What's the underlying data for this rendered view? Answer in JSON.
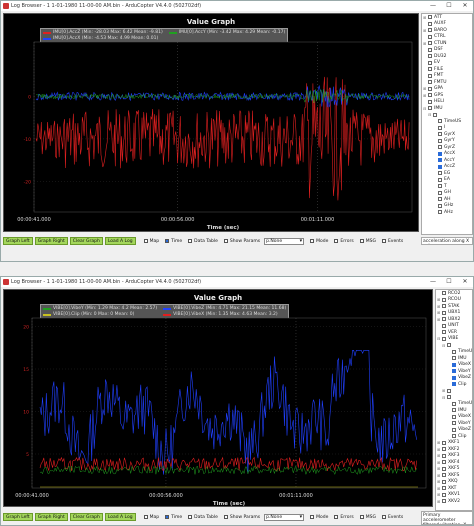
{
  "window1": {
    "title": "Log Browser - 1 1-01-1980 11-00-00 AM.bin - ArduCopter V4.4.0 (502702df)",
    "graph_title": "Value Graph",
    "legend": [
      {
        "label": "IMU[0].AccZ (Min: -28.03 Max: 6.42 Mean: -9.81)",
        "color": "#e02020"
      },
      {
        "label": "IMU[0].AccX (Min: -4.53 Max: 4.99 Mean: 0.01)",
        "color": "#2040ff"
      },
      {
        "label": "IMU[0].AccY (Min: -3.42 Max: 4.29 Mean: -0.17)",
        "color": "#20a020"
      }
    ],
    "x_ticks": [
      "00:00:41.000",
      "00:00:56.000",
      "00:01:11.000"
    ],
    "x_title": "Time (sec)",
    "y_ticks": [
      "0",
      "-10",
      "-20"
    ],
    "sidebar_items": [
      {
        "label": "ATT",
        "checked": false,
        "expander": "+",
        "indent": 0
      },
      {
        "label": "AUXF",
        "checked": false,
        "expander": "",
        "indent": 0
      },
      {
        "label": "BARO",
        "checked": false,
        "expander": "+",
        "indent": 0
      },
      {
        "label": "CTRL",
        "checked": false,
        "expander": "",
        "indent": 0
      },
      {
        "label": "CTUN",
        "checked": false,
        "expander": "+",
        "indent": 0
      },
      {
        "label": "DSF",
        "checked": false,
        "expander": "",
        "indent": 0
      },
      {
        "label": "DU32",
        "checked": false,
        "expander": "",
        "indent": 0
      },
      {
        "label": "EV",
        "checked": false,
        "expander": "",
        "indent": 0
      },
      {
        "label": "FILE",
        "checked": false,
        "expander": "",
        "indent": 0
      },
      {
        "label": "FMT",
        "checked": false,
        "expander": "",
        "indent": 0
      },
      {
        "label": "FMTU",
        "checked": false,
        "expander": "",
        "indent": 0
      },
      {
        "label": "GPA",
        "checked": false,
        "expander": "+",
        "indent": 0
      },
      {
        "label": "GPS",
        "checked": false,
        "expander": "+",
        "indent": 0
      },
      {
        "label": "HELI",
        "checked": false,
        "expander": "",
        "indent": 0
      },
      {
        "label": "IMU",
        "checked": false,
        "expander": "−",
        "indent": 0
      },
      {
        "label": "",
        "checked": false,
        "expander": "−",
        "indent": 1
      },
      {
        "label": "TimeUS",
        "checked": false,
        "expander": "",
        "indent": 2
      },
      {
        "label": "I",
        "checked": false,
        "expander": "",
        "indent": 2
      },
      {
        "label": "GyrX",
        "checked": false,
        "expander": "",
        "indent": 2
      },
      {
        "label": "GyrY",
        "checked": false,
        "expander": "",
        "indent": 2
      },
      {
        "label": "GyrZ",
        "checked": false,
        "expander": "",
        "indent": 2
      },
      {
        "label": "AccX",
        "checked": true,
        "expander": "",
        "indent": 2
      },
      {
        "label": "AccY",
        "checked": true,
        "expander": "",
        "indent": 2
      },
      {
        "label": "AccZ",
        "checked": true,
        "expander": "",
        "indent": 2
      },
      {
        "label": "EG",
        "checked": false,
        "expander": "",
        "indent": 2
      },
      {
        "label": "EA",
        "checked": false,
        "expander": "",
        "indent": 2
      },
      {
        "label": "T",
        "checked": false,
        "expander": "",
        "indent": 2
      },
      {
        "label": "GH",
        "checked": false,
        "expander": "",
        "indent": 2
      },
      {
        "label": "AH",
        "checked": false,
        "expander": "",
        "indent": 2
      },
      {
        "label": "GHz",
        "checked": false,
        "expander": "",
        "indent": 2
      },
      {
        "label": "AHz",
        "checked": false,
        "expander": "",
        "indent": 2
      }
    ],
    "description": "acceleration along X axis",
    "toolbar": {
      "buttons": [
        "Graph Left",
        "Graph Right",
        "Clear Graph",
        "Load A Log"
      ],
      "checks": [
        {
          "label": "Map",
          "checked": false
        },
        {
          "label": "Time",
          "checked": true
        },
        {
          "label": "Data Table",
          "checked": false
        },
        {
          "label": "Show Params",
          "checked": false
        }
      ],
      "select_value": "p.None",
      "checks2": [
        {
          "label": "Mode",
          "checked": false
        },
        {
          "label": "Errors",
          "checked": false
        },
        {
          "label": "MSG",
          "checked": false
        },
        {
          "label": "Events",
          "checked": false
        }
      ]
    }
  },
  "window2": {
    "title": "Log Browser - 1 1-01-1980 11-00-00 AM.bin - ArduCopter V4.4.0 (502702df)",
    "graph_title": "Value Graph",
    "legend": [
      {
        "label": "VIBE[0].VibeY (Min: 1.29 Max: 4.2 Mean: 2.57)",
        "color": "#20a020"
      },
      {
        "label": "VIBE[0].Clip (Min: 0 Max: 0 Mean: 0)",
        "color": "#c8c020"
      },
      {
        "label": "VIBE[0].VibeZ (Min: 4.71 Max: 21.15 Mean: 11.68)",
        "color": "#2040ff"
      },
      {
        "label": "VIBE[0].VibeX (Min: 1.35 Max: 4.63 Mean: 3.2)",
        "color": "#e02020"
      }
    ],
    "x_ticks": [
      "00:00:41.000",
      "00:00:56.000",
      "00:01:11.000"
    ],
    "x_title": "Time (sec)",
    "y_ticks": [
      "20",
      "15",
      "10",
      "5"
    ],
    "sidebar_items": [
      {
        "label": "RCO2",
        "checked": false,
        "expander": "",
        "indent": 0
      },
      {
        "label": "RCOU",
        "checked": false,
        "expander": "+",
        "indent": 0
      },
      {
        "label": "STAK",
        "checked": false,
        "expander": "+",
        "indent": 0
      },
      {
        "label": "UBX1",
        "checked": false,
        "expander": "+",
        "indent": 0
      },
      {
        "label": "UBX2",
        "checked": false,
        "expander": "+",
        "indent": 0
      },
      {
        "label": "UNIT",
        "checked": false,
        "expander": "",
        "indent": 0
      },
      {
        "label": "VER",
        "checked": false,
        "expander": "",
        "indent": 0
      },
      {
        "label": "VIBE",
        "checked": false,
        "expander": "−",
        "indent": 0
      },
      {
        "label": "",
        "checked": false,
        "expander": "−",
        "indent": 1
      },
      {
        "label": "TimeUS",
        "checked": false,
        "expander": "",
        "indent": 2
      },
      {
        "label": "IMU",
        "checked": false,
        "expander": "",
        "indent": 2
      },
      {
        "label": "VibeX",
        "checked": true,
        "expander": "",
        "indent": 2
      },
      {
        "label": "VibeY",
        "checked": true,
        "expander": "",
        "indent": 2
      },
      {
        "label": "VibeZ",
        "checked": true,
        "expander": "",
        "indent": 2
      },
      {
        "label": "Clip",
        "checked": true,
        "expander": "",
        "indent": 2
      },
      {
        "label": "",
        "checked": false,
        "expander": "+",
        "indent": 1
      },
      {
        "label": "",
        "checked": false,
        "expander": "−",
        "indent": 1
      },
      {
        "label": "TimeUS",
        "checked": false,
        "expander": "",
        "indent": 2
      },
      {
        "label": "IMU",
        "checked": false,
        "expander": "",
        "indent": 2
      },
      {
        "label": "VibeX",
        "checked": false,
        "expander": "",
        "indent": 2
      },
      {
        "label": "VibeY",
        "checked": false,
        "expander": "",
        "indent": 2
      },
      {
        "label": "VibeZ",
        "checked": false,
        "expander": "",
        "indent": 2
      },
      {
        "label": "Clip",
        "checked": false,
        "expander": "",
        "indent": 2
      },
      {
        "label": "XKF1",
        "checked": false,
        "expander": "+",
        "indent": 0
      },
      {
        "label": "XKF2",
        "checked": false,
        "expander": "+",
        "indent": 0
      },
      {
        "label": "XKF3",
        "checked": false,
        "expander": "+",
        "indent": 0
      },
      {
        "label": "XKF4",
        "checked": false,
        "expander": "+",
        "indent": 0
      },
      {
        "label": "XKF5",
        "checked": false,
        "expander": "+",
        "indent": 0
      },
      {
        "label": "XKFS",
        "checked": false,
        "expander": "+",
        "indent": 0
      },
      {
        "label": "XKQ",
        "checked": false,
        "expander": "+",
        "indent": 0
      },
      {
        "label": "XKT",
        "checked": false,
        "expander": "+",
        "indent": 0
      },
      {
        "label": "XKV1",
        "checked": false,
        "expander": "+",
        "indent": 0
      },
      {
        "label": "XKV2",
        "checked": false,
        "expander": "+",
        "indent": 0
      }
    ],
    "description": "Primary accelerometer filtered vibration, X axis",
    "toolbar": {
      "buttons": [
        "Graph Left",
        "Graph Right",
        "Clear Graph",
        "Load A Log"
      ],
      "checks": [
        {
          "label": "Map",
          "checked": false
        },
        {
          "label": "Time",
          "checked": true
        },
        {
          "label": "Data Table",
          "checked": false
        },
        {
          "label": "Show Params",
          "checked": false
        }
      ],
      "select_value": "p.None",
      "checks2": [
        {
          "label": "Mode",
          "checked": false
        },
        {
          "label": "Errors",
          "checked": false
        },
        {
          "label": "MSG",
          "checked": false
        },
        {
          "label": "Events",
          "checked": false
        }
      ]
    }
  },
  "colors": {
    "button_green": "#a3d65b",
    "plot_bg": "#000000",
    "check_blue": "#2a6bd8"
  }
}
